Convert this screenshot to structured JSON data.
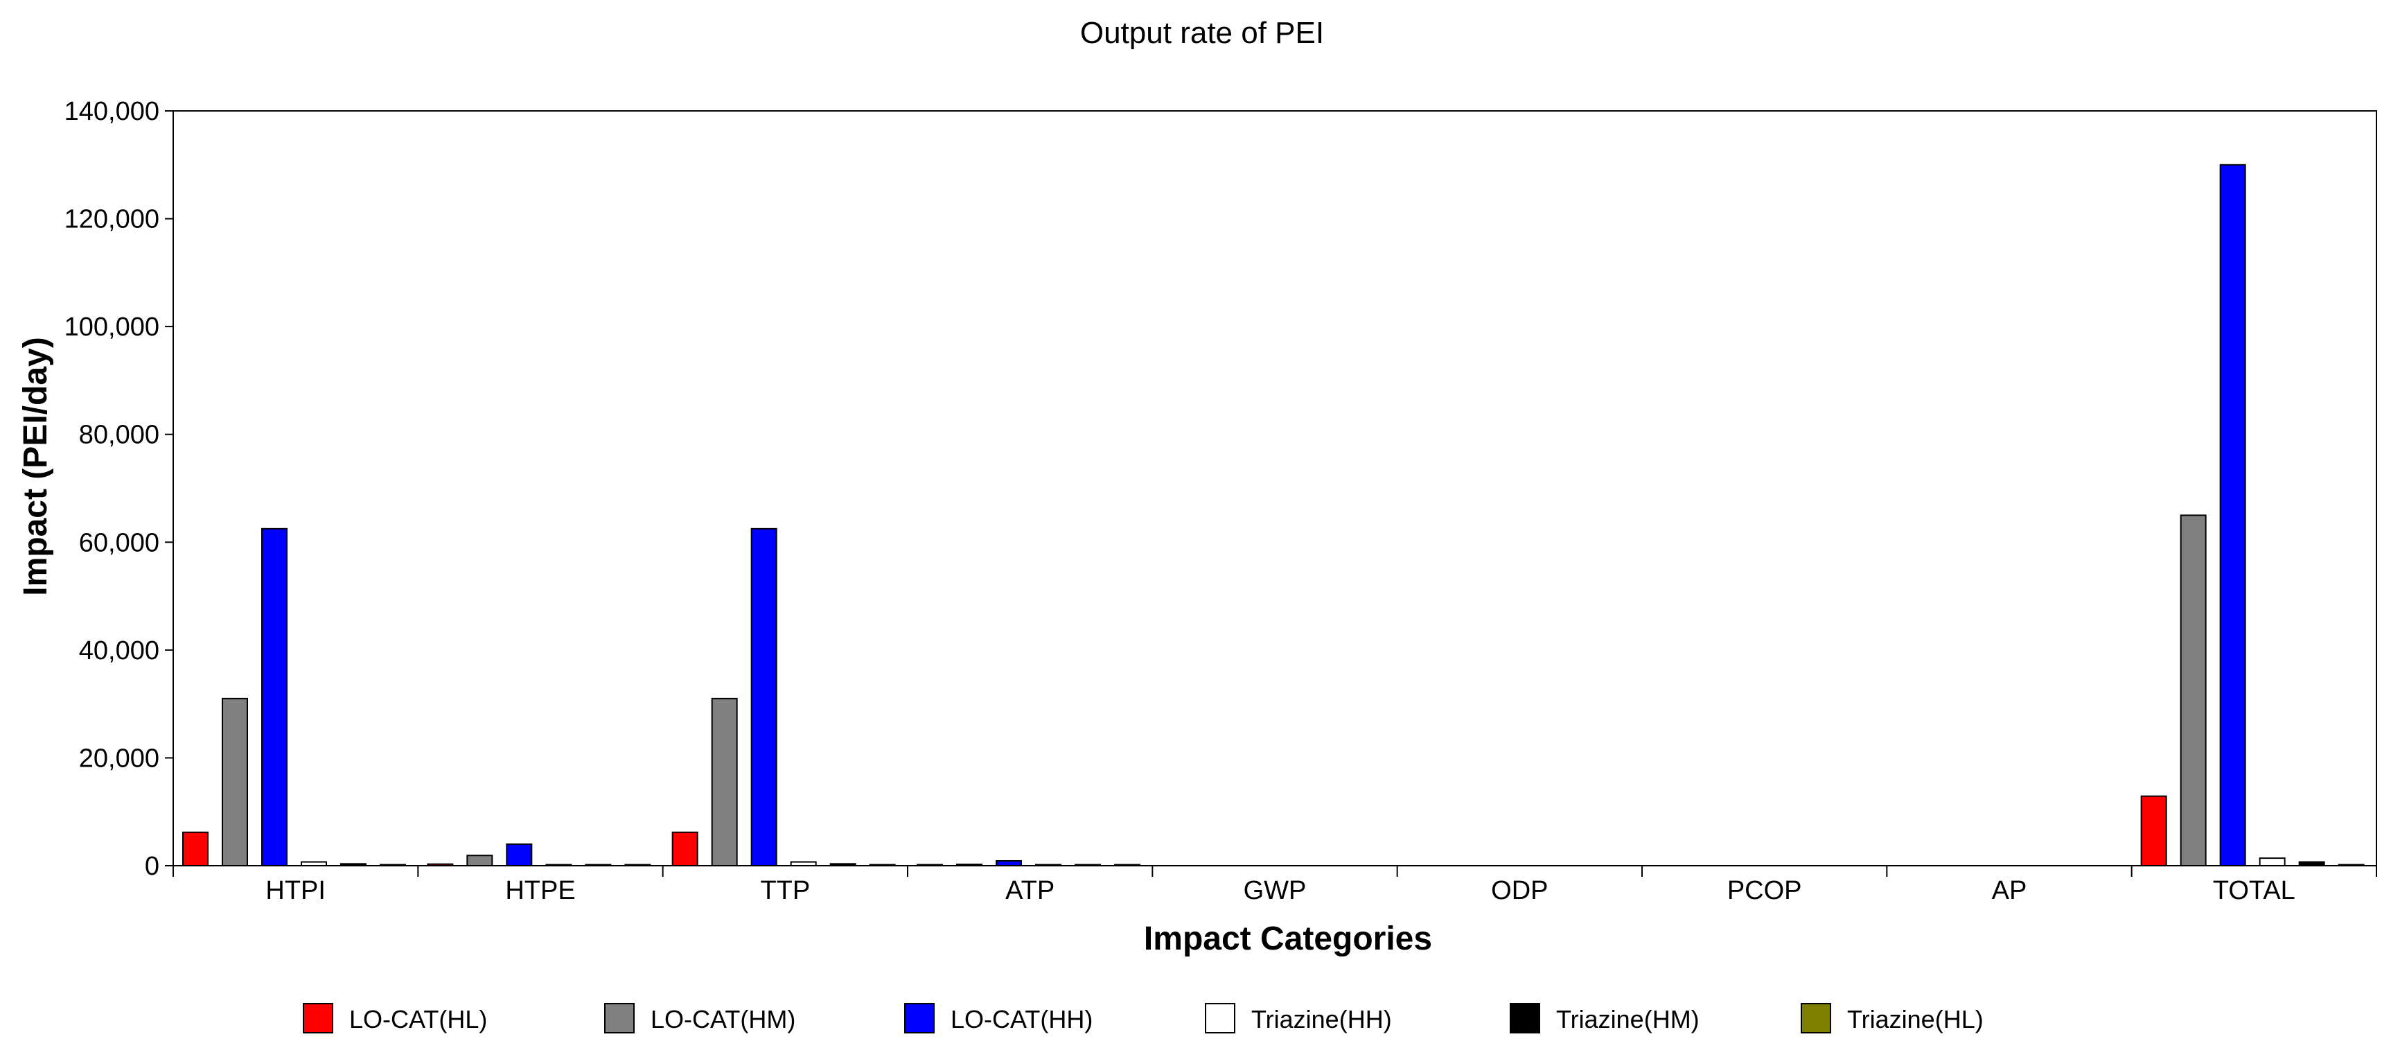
{
  "chart_data": {
    "type": "bar",
    "title": "Output rate of PEI",
    "xlabel": "Impact Categories",
    "ylabel": "Impact (PEI/day)",
    "ylim": [
      0,
      140000
    ],
    "yticks": [
      "0",
      "20,000",
      "40,000",
      "60,000",
      "80,000",
      "100,000",
      "120,000",
      "140,000"
    ],
    "ytick_values": [
      0,
      20000,
      40000,
      60000,
      80000,
      100000,
      120000,
      140000
    ],
    "grid": false,
    "legend_position": "bottom",
    "categories": [
      "HTPI",
      "HTPE",
      "TTP",
      "ATP",
      "GWP",
      "ODP",
      "PCOP",
      "AP",
      "TOTAL"
    ],
    "series": [
      {
        "name": "LO-CAT(HL)",
        "color": "#ff0000",
        "values": [
          6200,
          300,
          6200,
          100,
          0,
          0,
          0,
          0,
          12900
        ]
      },
      {
        "name": "LO-CAT(HM)",
        "color": "#808080",
        "values": [
          31000,
          1900,
          31000,
          250,
          0,
          0,
          0,
          0,
          65000
        ]
      },
      {
        "name": "LO-CAT(HH)",
        "color": "#0000ff",
        "values": [
          62500,
          4000,
          62500,
          900,
          0,
          0,
          0,
          0,
          130000
        ]
      },
      {
        "name": "Triazine(HH)",
        "color": "#ffffff",
        "values": [
          700,
          50,
          700,
          10,
          0,
          0,
          0,
          0,
          1400
        ]
      },
      {
        "name": "Triazine(HM)",
        "color": "#000000",
        "values": [
          350,
          20,
          350,
          5,
          0,
          0,
          0,
          0,
          700
        ]
      },
      {
        "name": "Triazine(HL)",
        "color": "#808000",
        "values": [
          70,
          5,
          70,
          1,
          0,
          0,
          0,
          0,
          140
        ]
      }
    ]
  }
}
